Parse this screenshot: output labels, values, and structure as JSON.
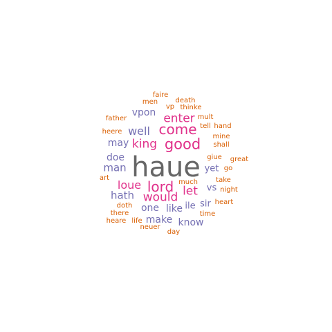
{
  "palette": {
    "gray": "#666666",
    "pink": "#e0308a",
    "purple": "#7570b3",
    "orange": "#d95f02"
  },
  "words": [
    {
      "text": "haue",
      "color": "gray"
    },
    {
      "text": "good",
      "color": "pink"
    },
    {
      "text": "come",
      "color": "pink"
    },
    {
      "text": "lord",
      "color": "pink"
    },
    {
      "text": "king",
      "color": "pink"
    },
    {
      "text": "enter",
      "color": "pink"
    },
    {
      "text": "would",
      "color": "pink"
    },
    {
      "text": "let",
      "color": "pink"
    },
    {
      "text": "loue",
      "color": "pink"
    },
    {
      "text": "well",
      "color": "purple"
    },
    {
      "text": "man",
      "color": "purple"
    },
    {
      "text": "hath",
      "color": "purple"
    },
    {
      "text": "doe",
      "color": "purple"
    },
    {
      "text": "may",
      "color": "purple"
    },
    {
      "text": "vpon",
      "color": "purple"
    },
    {
      "text": "one",
      "color": "purple"
    },
    {
      "text": "like",
      "color": "purple"
    },
    {
      "text": "make",
      "color": "purple"
    },
    {
      "text": "know",
      "color": "purple"
    },
    {
      "text": "ile",
      "color": "purple"
    },
    {
      "text": "yet",
      "color": "purple"
    },
    {
      "text": "vs",
      "color": "purple"
    },
    {
      "text": "sir",
      "color": "purple"
    },
    {
      "text": "faire",
      "color": "orange"
    },
    {
      "text": "men",
      "color": "orange"
    },
    {
      "text": "death",
      "color": "orange"
    },
    {
      "text": "vp",
      "color": "orange"
    },
    {
      "text": "thinke",
      "color": "orange"
    },
    {
      "text": "father",
      "color": "orange"
    },
    {
      "text": "mult",
      "color": "orange"
    },
    {
      "text": "tell",
      "color": "orange"
    },
    {
      "text": "hand",
      "color": "orange"
    },
    {
      "text": "heere",
      "color": "orange"
    },
    {
      "text": "mine",
      "color": "orange"
    },
    {
      "text": "shall",
      "color": "orange"
    },
    {
      "text": "giue",
      "color": "orange"
    },
    {
      "text": "great",
      "color": "orange"
    },
    {
      "text": "go",
      "color": "orange"
    },
    {
      "text": "art",
      "color": "orange"
    },
    {
      "text": "much",
      "color": "orange"
    },
    {
      "text": "take",
      "color": "orange"
    },
    {
      "text": "night",
      "color": "orange"
    },
    {
      "text": "heart",
      "color": "orange"
    },
    {
      "text": "doth",
      "color": "orange"
    },
    {
      "text": "there",
      "color": "orange"
    },
    {
      "text": "time",
      "color": "orange"
    },
    {
      "text": "heare",
      "color": "orange"
    },
    {
      "text": "life",
      "color": "orange"
    },
    {
      "text": "neuer",
      "color": "orange"
    },
    {
      "text": "day",
      "color": "orange"
    }
  ]
}
